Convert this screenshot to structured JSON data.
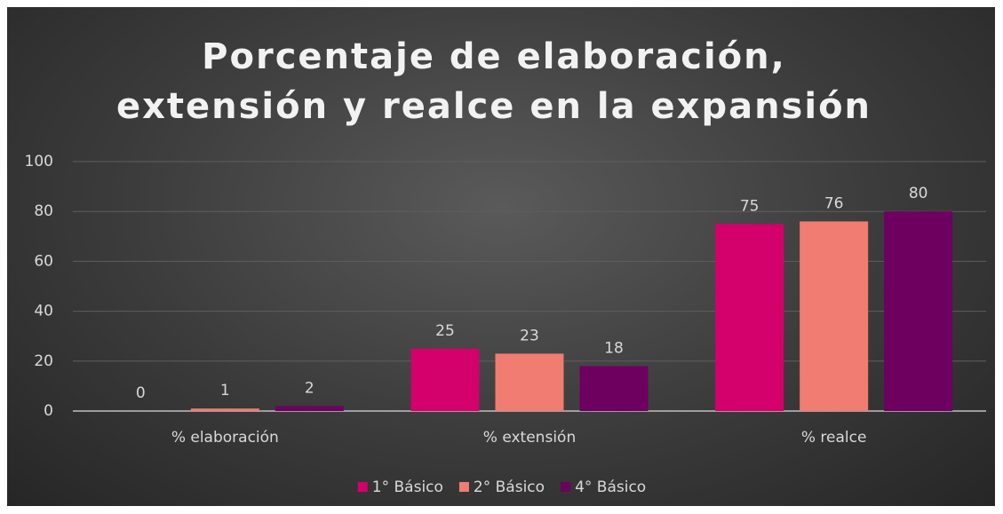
{
  "chart_data": {
    "type": "bar",
    "title": "Porcentaje de elaboración, extensión y realce en la expansión",
    "categories": [
      "% elaboración",
      "% extensión",
      "% realce"
    ],
    "series": [
      {
        "name": "1° Básico",
        "color": "#d4006b",
        "values": [
          0,
          25,
          75
        ]
      },
      {
        "name": "2° Básico",
        "color": "#f07c72",
        "values": [
          1,
          23,
          76
        ]
      },
      {
        "name": "4° Básico",
        "color": "#6e005f",
        "values": [
          2,
          18,
          80
        ]
      }
    ],
    "ylim": [
      0,
      100
    ],
    "yticks": [
      0,
      20,
      40,
      60,
      80,
      100
    ],
    "grid": true,
    "legend": "bottom"
  }
}
